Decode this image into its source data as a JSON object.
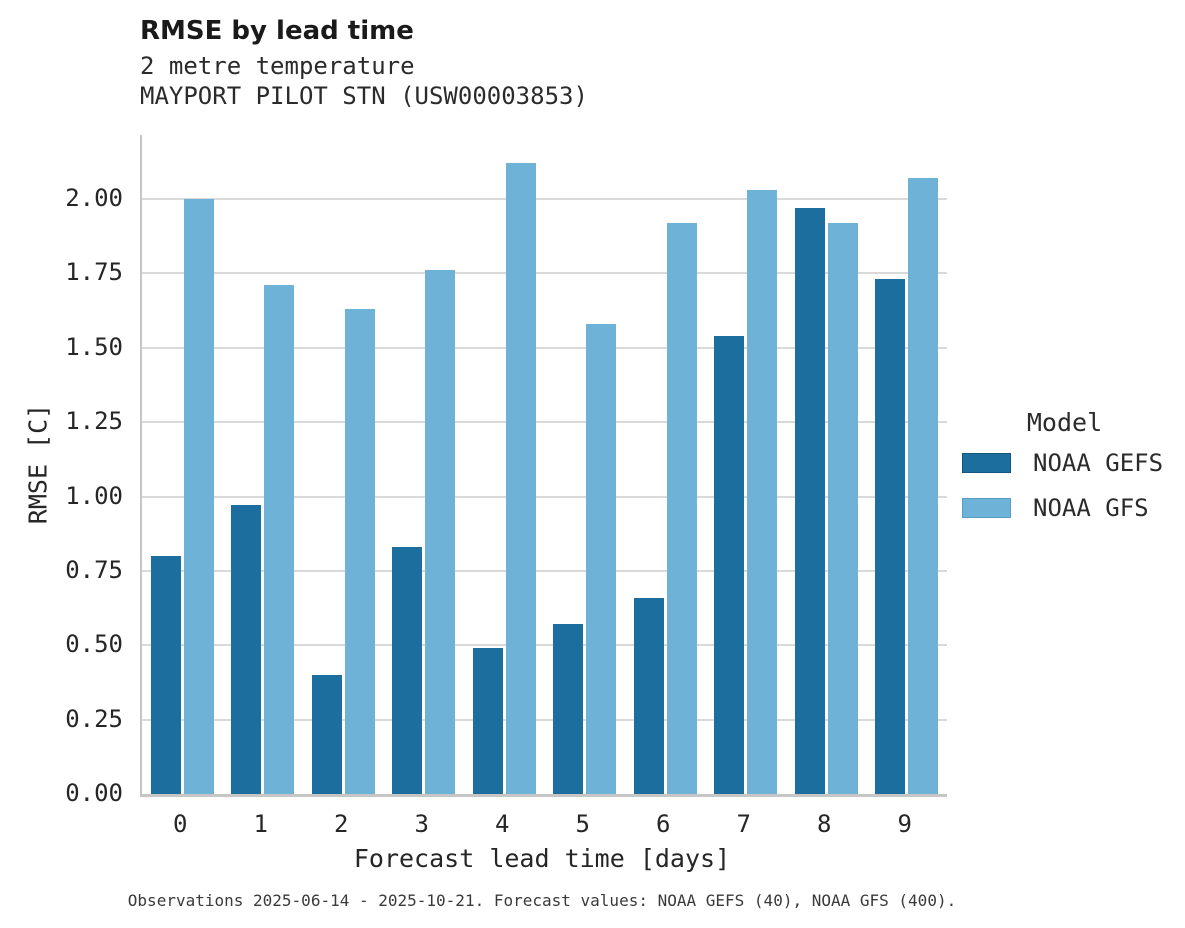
{
  "header": {
    "title": "RMSE by lead time",
    "subtitle_line1": "2 metre temperature",
    "subtitle_line2": "MAYPORT PILOT STN (USW00003853)"
  },
  "chart_data": {
    "type": "bar",
    "title": "RMSE by lead time",
    "subtitle": [
      "2 metre temperature",
      "MAYPORT PILOT STN (USW00003853)"
    ],
    "categories": [
      "0",
      "1",
      "2",
      "3",
      "4",
      "5",
      "6",
      "7",
      "8",
      "9"
    ],
    "series": [
      {
        "name": "NOAA GEFS",
        "color": "#1b6e9e",
        "edge_color": "#15587f",
        "values": [
          0.8,
          0.97,
          0.4,
          0.83,
          0.49,
          0.57,
          0.66,
          1.54,
          1.97,
          1.73
        ]
      },
      {
        "name": "NOAA GFS",
        "color": "#6fb2d8",
        "edge_color": "#5a9cc4",
        "values": [
          2.0,
          1.71,
          1.63,
          1.76,
          2.12,
          1.58,
          1.92,
          2.03,
          1.92,
          2.07
        ]
      }
    ],
    "xlabel": "Forecast lead time [days]",
    "ylabel": "RMSE [C]",
    "ylim": [
      0,
      2.21
    ],
    "yticks": [
      0.0,
      0.25,
      0.5,
      0.75,
      1.0,
      1.25,
      1.5,
      1.75,
      2.0
    ],
    "grid": "horizontal",
    "legend": {
      "title": "Model",
      "position": "right"
    }
  },
  "footer": {
    "caption": "Observations 2025-06-14 - 2025-10-21. Forecast values: NOAA GEFS (40), NOAA GFS (400)."
  },
  "colors": {
    "grid": "#d9d9d9",
    "spine": "#c6c6c6",
    "background": "#ffffff"
  }
}
